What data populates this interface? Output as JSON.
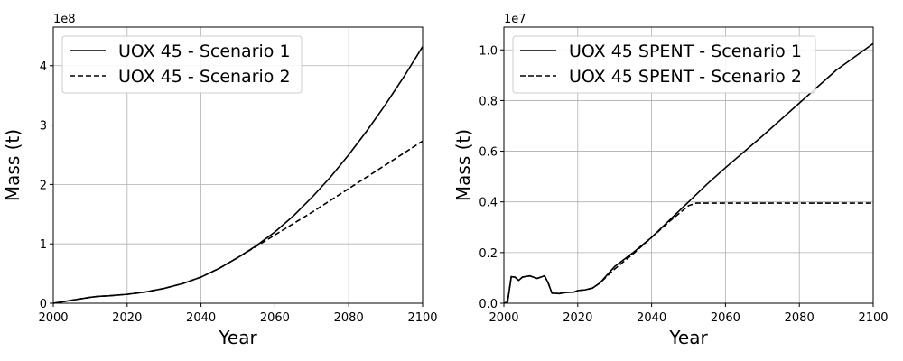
{
  "chart_data": [
    {
      "type": "line",
      "xlabel": "Year",
      "ylabel": "Mass (t)",
      "y_offset_label": "1e8",
      "y_multiplier": 100000000,
      "xlim": [
        2000,
        2100
      ],
      "ylim": [
        0,
        4.65
      ],
      "xticks": [
        2000,
        2020,
        2040,
        2060,
        2080,
        2100
      ],
      "yticks": [
        0,
        1,
        2,
        3,
        4
      ],
      "ytick_labels": [
        "0",
        "1",
        "2",
        "3",
        "4"
      ],
      "grid": true,
      "legend_position": "upper-left",
      "series": [
        {
          "name": "UOX 45 - Scenario 1",
          "style": "solid",
          "x": [
            2000,
            2005,
            2010,
            2012,
            2015,
            2020,
            2025,
            2030,
            2035,
            2040,
            2045,
            2050,
            2055,
            2060,
            2065,
            2070,
            2075,
            2080,
            2085,
            2090,
            2095,
            2100
          ],
          "y": [
            0,
            0.05,
            0.1,
            0.115,
            0.125,
            0.15,
            0.19,
            0.25,
            0.33,
            0.44,
            0.59,
            0.77,
            0.97,
            1.2,
            1.47,
            1.78,
            2.12,
            2.5,
            2.91,
            3.35,
            3.82,
            4.32
          ]
        },
        {
          "name": "UOX 45 - Scenario 2",
          "style": "dashed",
          "x": [
            2000,
            2005,
            2010,
            2012,
            2015,
            2020,
            2025,
            2030,
            2035,
            2040,
            2045,
            2050,
            2055,
            2060,
            2065,
            2070,
            2075,
            2080,
            2085,
            2090,
            2095,
            2100
          ],
          "y": [
            0,
            0.05,
            0.1,
            0.115,
            0.125,
            0.15,
            0.19,
            0.25,
            0.33,
            0.44,
            0.59,
            0.77,
            0.96,
            1.15,
            1.34,
            1.53,
            1.73,
            1.93,
            2.13,
            2.33,
            2.53,
            2.73
          ]
        }
      ]
    },
    {
      "type": "line",
      "xlabel": "Year",
      "ylabel": "Mass (t)",
      "y_offset_label": "1e7",
      "y_multiplier": 10000000,
      "xlim": [
        2000,
        2100
      ],
      "ylim": [
        0,
        1.09
      ],
      "xticks": [
        2000,
        2020,
        2040,
        2060,
        2080,
        2100
      ],
      "yticks": [
        0,
        0.2,
        0.4,
        0.6,
        0.8,
        1.0
      ],
      "ytick_labels": [
        "0.0",
        "0.2",
        "0.4",
        "0.6",
        "0.8",
        "1.0"
      ],
      "grid": true,
      "legend_position": "upper-left",
      "series": [
        {
          "name": "UOX 45 SPENT - Scenario 1",
          "style": "solid",
          "x": [
            2000,
            2001,
            2002,
            2003,
            2004,
            2005,
            2007,
            2009,
            2011,
            2012,
            2013,
            2015,
            2017,
            2019,
            2020,
            2022,
            2024,
            2026,
            2030,
            2035,
            2040,
            2045,
            2050,
            2055,
            2060,
            2070,
            2080,
            2090,
            2100
          ],
          "y": [
            0,
            0.005,
            0.105,
            0.103,
            0.09,
            0.103,
            0.108,
            0.098,
            0.108,
            0.08,
            0.04,
            0.038,
            0.043,
            0.044,
            0.05,
            0.053,
            0.06,
            0.08,
            0.145,
            0.2,
            0.26,
            0.33,
            0.4,
            0.47,
            0.535,
            0.66,
            0.79,
            0.92,
            1.025
          ]
        },
        {
          "name": "UOX 45 SPENT - Scenario 2",
          "style": "dashed",
          "x": [
            2000,
            2001,
            2002,
            2003,
            2004,
            2005,
            2007,
            2009,
            2011,
            2012,
            2013,
            2015,
            2017,
            2019,
            2020,
            2022,
            2024,
            2026,
            2030,
            2035,
            2040,
            2045,
            2050,
            2052,
            2060,
            2070,
            2080,
            2090,
            2100
          ],
          "y": [
            0,
            0.005,
            0.105,
            0.103,
            0.09,
            0.103,
            0.108,
            0.098,
            0.108,
            0.08,
            0.04,
            0.038,
            0.043,
            0.044,
            0.05,
            0.053,
            0.06,
            0.08,
            0.135,
            0.195,
            0.26,
            0.325,
            0.385,
            0.395,
            0.395,
            0.395,
            0.395,
            0.395,
            0.395
          ]
        }
      ]
    }
  ]
}
